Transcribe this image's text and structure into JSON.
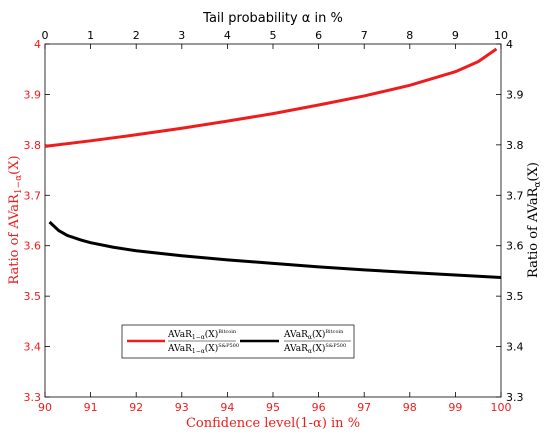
{
  "chart_data": {
    "type": "line",
    "title": "",
    "top_axis": {
      "label": "Tail probability α in %",
      "range": [
        0,
        10
      ],
      "ticks": [
        "0",
        "1",
        "2",
        "3",
        "4",
        "5",
        "6",
        "7",
        "8",
        "9",
        "10"
      ]
    },
    "bottom_axis": {
      "label": "Confidence level(1-α) in %",
      "range": [
        90,
        100
      ],
      "ticks": [
        "90",
        "91",
        "92",
        "93",
        "94",
        "95",
        "96",
        "97",
        "98",
        "99",
        "100"
      ]
    },
    "left_axis": {
      "label": "Ratio of AVaR",
      "sub": "1−α",
      "arg": "(X)",
      "range": [
        3.3,
        4.0
      ],
      "ticks": [
        "3.3",
        "3.4",
        "3.5",
        "3.6",
        "3.7",
        "3.8",
        "3.9",
        "4"
      ]
    },
    "right_axis": {
      "label": "Ratio of AVaR",
      "sub": "α",
      "arg": "(X)",
      "range": [
        3.3,
        4.0
      ],
      "ticks": [
        "3.3",
        "3.4",
        "3.5",
        "3.6",
        "3.7",
        "3.8",
        "3.9",
        "4"
      ]
    },
    "grid": false,
    "legend_position": "lower-center",
    "series": [
      {
        "name": "AVaR_{1−α}(X)^{Bitcoin} / AVaR_{1−α}(X)^{S&P500}",
        "axis": "bottom-left",
        "color": "#ee1c1c",
        "x": [
          90.0,
          91.0,
          92.0,
          93.0,
          94.0,
          95.0,
          96.0,
          97.0,
          98.0,
          99.0,
          99.5,
          99.9
        ],
        "y": [
          3.797,
          3.808,
          3.82,
          3.833,
          3.847,
          3.862,
          3.879,
          3.897,
          3.918,
          3.945,
          3.965,
          3.99
        ]
      },
      {
        "name": "AVaR_α(X)^{Bitcoin} / AVaR_α(X)^{S&P500}",
        "axis": "top-right",
        "color": "#000000",
        "x": [
          0.1,
          0.3,
          0.5,
          0.8,
          1.0,
          1.5,
          2.0,
          3.0,
          4.0,
          5.0,
          6.0,
          7.0,
          8.0,
          9.0,
          10.0
        ],
        "y": [
          3.647,
          3.63,
          3.62,
          3.611,
          3.606,
          3.597,
          3.59,
          3.58,
          3.572,
          3.565,
          3.558,
          3.552,
          3.547,
          3.542,
          3.537
        ]
      }
    ],
    "legend": [
      {
        "top": "AVaR",
        "top_sub": "1−α",
        "top_arg": "(X)",
        "top_sup": "Bitcoin",
        "bottom": "AVaR",
        "bottom_sub": "1−α",
        "bottom_arg": "(X)",
        "bottom_sup": "S&P500"
      },
      {
        "top": "AVaR",
        "top_sub": "α",
        "top_arg": "(X)",
        "top_sup": "Bitcoin",
        "bottom": "AVaR",
        "bottom_sub": "α",
        "bottom_arg": "(X)",
        "bottom_sup": "S&P500"
      }
    ],
    "colors": {
      "left_axis": "#ee1c1c",
      "right_axis": "#000000",
      "red_series": "#ee1c1c",
      "black_series": "#000000"
    }
  }
}
